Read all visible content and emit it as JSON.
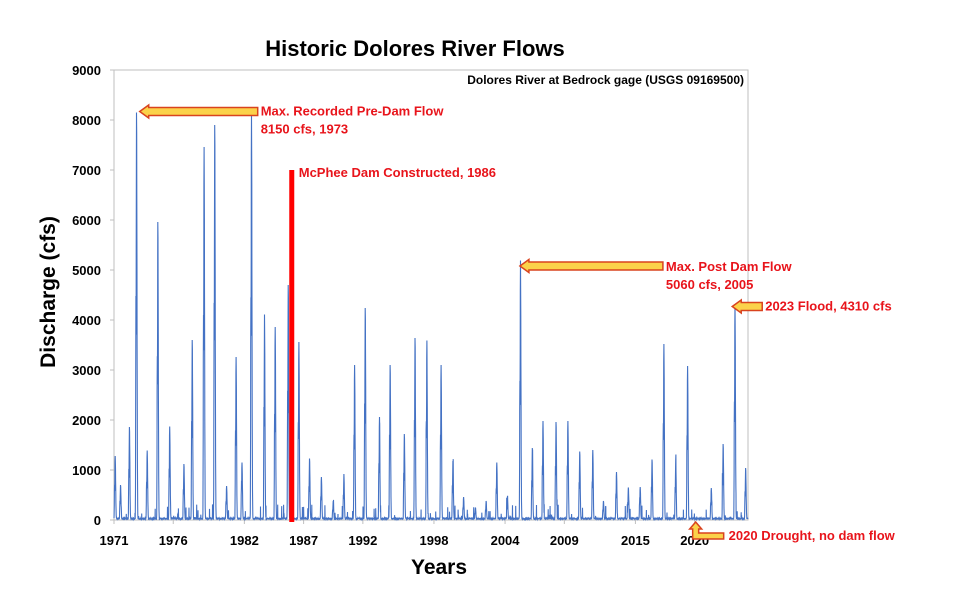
{
  "chart_data": {
    "type": "line",
    "title": "Historic Dolores River Flows",
    "subtitle": "Dolores River at Bedrock gage (USGS 09169500)",
    "xlabel": "Years",
    "ylabel": "Discharge (cfs)",
    "xlim": [
      1971,
      2024.5
    ],
    "ylim": [
      0,
      9000
    ],
    "x_ticks": [
      "1971",
      "1976",
      "1982",
      "1987",
      "1992",
      "1998",
      "2004",
      "2009",
      "2015",
      "2020"
    ],
    "y_ticks": [
      "0",
      "1000",
      "2000",
      "3000",
      "4000",
      "5000",
      "6000",
      "7000",
      "8000",
      "9000"
    ],
    "grid": false,
    "legend": "none",
    "series": [
      {
        "color": "#4472c4",
        "peaks": [
          [
            1971.1,
            1280
          ],
          [
            1971.55,
            700
          ],
          [
            1972.3,
            1860
          ],
          [
            1972.9,
            8150
          ],
          [
            1973.8,
            1390
          ],
          [
            1974.7,
            5960
          ],
          [
            1975.7,
            1870
          ],
          [
            1976.9,
            1120
          ],
          [
            1977.6,
            3600
          ],
          [
            1978.6,
            7460
          ],
          [
            1979.5,
            7900
          ],
          [
            1980.5,
            680
          ],
          [
            1981.3,
            3260
          ],
          [
            1981.8,
            1150
          ],
          [
            1982.6,
            8100
          ],
          [
            1983.7,
            4110
          ],
          [
            1984.6,
            3860
          ],
          [
            1985.7,
            4700
          ],
          [
            1986.6,
            3560
          ],
          [
            1987.5,
            1230
          ],
          [
            1988.5,
            860
          ],
          [
            1989.5,
            380
          ],
          [
            1990.4,
            920
          ],
          [
            1991.3,
            3100
          ],
          [
            1992.2,
            4240
          ],
          [
            1993.4,
            2060
          ],
          [
            1994.3,
            3100
          ],
          [
            1995.5,
            1720
          ],
          [
            1996.4,
            3640
          ],
          [
            1997.4,
            3590
          ],
          [
            1998.6,
            3100
          ],
          [
            1999.6,
            1180
          ],
          [
            2000.5,
            460
          ],
          [
            2001.5,
            250
          ],
          [
            2002.4,
            380
          ],
          [
            2003.3,
            1150
          ],
          [
            2004.2,
            460
          ],
          [
            2005.3,
            5060
          ],
          [
            2006.3,
            1440
          ],
          [
            2007.2,
            1980
          ],
          [
            2008.3,
            1960
          ],
          [
            2009.3,
            1980
          ],
          [
            2010.3,
            1370
          ],
          [
            2011.4,
            1400
          ],
          [
            2012.3,
            380
          ],
          [
            2013.4,
            960
          ],
          [
            2014.4,
            650
          ],
          [
            2015.4,
            660
          ],
          [
            2016.4,
            1210
          ],
          [
            2017.4,
            3520
          ],
          [
            2018.4,
            1200
          ],
          [
            2019.4,
            3080
          ],
          [
            2020.4,
            0
          ],
          [
            2021.4,
            640
          ],
          [
            2022.4,
            1520
          ],
          [
            2023.4,
            4310
          ],
          [
            2024.3,
            1040
          ]
        ]
      }
    ],
    "dam_marker": {
      "year": 1986,
      "top_value": 7000,
      "color": "#ff0000"
    },
    "annotations": [
      {
        "lines": [
          "Max. Recorded Pre-Dam Flow",
          "8150 cfs, 1973"
        ],
        "x": 1973,
        "y": 8150
      },
      {
        "lines": [
          "McPhee Dam Constructed, 1986"
        ],
        "x": 1986,
        "y": 7000
      },
      {
        "lines": [
          "Max. Post Dam Flow",
          "5060 cfs, 2005"
        ],
        "x": 2005,
        "y": 5060
      },
      {
        "lines": [
          "2023 Flood, 4310 cfs"
        ],
        "x": 2023,
        "y": 4310
      },
      {
        "lines": [
          "2020 Drought, no dam flow"
        ],
        "x": 2020,
        "y": 0
      }
    ]
  }
}
